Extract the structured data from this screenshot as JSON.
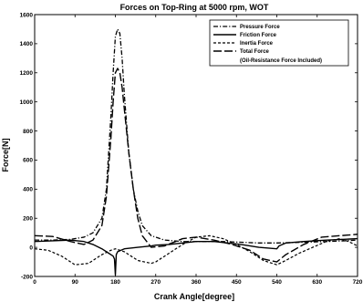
{
  "chart_data": {
    "type": "line",
    "title": "Forces on Top-Ring at 5000 rpm, WOT",
    "xlabel": "Crank Angle[degree]",
    "ylabel": "Force[N]",
    "xlim": [
      0,
      720
    ],
    "ylim": [
      -200,
      1600
    ],
    "xticks": [
      0,
      90,
      180,
      270,
      360,
      450,
      540,
      630,
      720
    ],
    "yticks": [
      -200,
      0,
      200,
      400,
      600,
      800,
      1000,
      1200,
      1400,
      1600
    ],
    "xtick_labels": [
      "0",
      "90",
      "180",
      "270",
      "360",
      "450",
      "540",
      "630",
      "720"
    ],
    "ytick_labels": [
      "-200",
      "0",
      "200",
      "400",
      "600",
      "800",
      "1000",
      "1200",
      "1400",
      "1600"
    ],
    "legend_position": "top-right",
    "legend_note": "(Oil-Resistance Force Included)",
    "grid": false,
    "series": [
      {
        "name": "Pressure Force",
        "style": "dash-dot",
        "x": [
          0,
          40,
          80,
          110,
          130,
          150,
          160,
          170,
          175,
          180,
          185,
          190,
          195,
          200,
          210,
          220,
          230,
          240,
          260,
          290,
          330,
          380,
          420,
          460,
          500,
          540,
          600,
          650,
          690,
          720
        ],
        "y": [
          50,
          50,
          55,
          70,
          100,
          200,
          400,
          900,
          1200,
          1450,
          1500,
          1470,
          1300,
          1050,
          650,
          400,
          250,
          150,
          80,
          50,
          40,
          40,
          40,
          35,
          30,
          30,
          35,
          40,
          45,
          50
        ]
      },
      {
        "name": "Friction Force",
        "style": "solid",
        "x": [
          0,
          40,
          80,
          110,
          130,
          150,
          165,
          175,
          178,
          180,
          182,
          185,
          200,
          230,
          260,
          270,
          300,
          330,
          360,
          400,
          430,
          460,
          500,
          540,
          545,
          560,
          600,
          650,
          690,
          720
        ],
        "y": [
          40,
          45,
          50,
          40,
          20,
          -10,
          -40,
          -60,
          -80,
          -190,
          -50,
          -30,
          -10,
          0,
          10,
          15,
          20,
          30,
          40,
          40,
          30,
          20,
          0,
          -10,
          10,
          30,
          40,
          50,
          55,
          60
        ]
      },
      {
        "name": "Inertia Force",
        "style": "dashed",
        "x": [
          0,
          30,
          60,
          90,
          120,
          150,
          170,
          180,
          200,
          230,
          260,
          270,
          300,
          330,
          360,
          390,
          420,
          450,
          480,
          510,
          540,
          560,
          590,
          620,
          650,
          680,
          700,
          720
        ],
        "y": [
          -10,
          -20,
          -60,
          -120,
          -110,
          -50,
          -20,
          -10,
          -30,
          -90,
          -110,
          -100,
          -40,
          20,
          70,
          80,
          60,
          20,
          -30,
          -90,
          -120,
          -90,
          -40,
          0,
          40,
          60,
          40,
          10
        ]
      },
      {
        "name": "Total Force",
        "style": "long-dash",
        "x": [
          0,
          40,
          80,
          110,
          130,
          150,
          160,
          170,
          175,
          180,
          185,
          190,
          195,
          200,
          210,
          220,
          230,
          240,
          260,
          290,
          330,
          360,
          400,
          440,
          480,
          510,
          540,
          560,
          600,
          640,
          680,
          720
        ],
        "y": [
          80,
          75,
          40,
          20,
          50,
          150,
          350,
          750,
          1000,
          1200,
          1230,
          1200,
          1100,
          950,
          650,
          400,
          200,
          80,
          0,
          10,
          60,
          70,
          50,
          20,
          -20,
          -80,
          -100,
          -50,
          20,
          70,
          80,
          90
        ]
      }
    ]
  }
}
